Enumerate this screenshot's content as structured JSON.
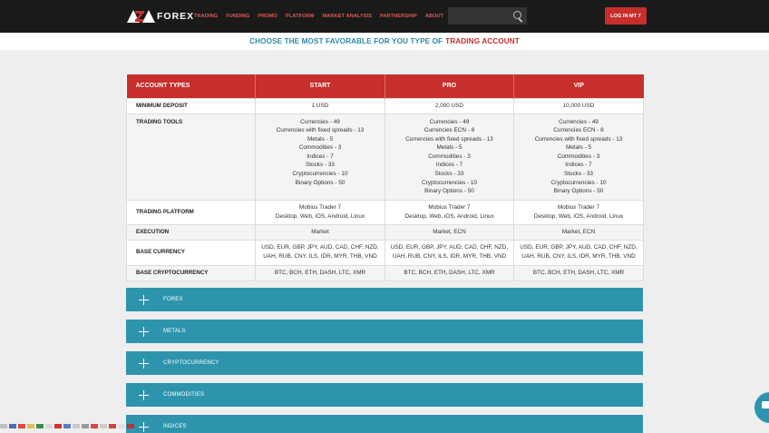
{
  "brand": {
    "logo_text": "FOREX",
    "accent": "#c62f2b",
    "teal": "#2e94ad"
  },
  "nav": {
    "items": [
      "TRADING",
      "FUNDING",
      "PROMO",
      "PLATFORM",
      "MARKET ANALYSIS",
      "PARTNERSHIP",
      "ABOUT"
    ],
    "search_placeholder": "",
    "login_label": "LOG IN MT 7"
  },
  "heading": {
    "prefix": "CHOOSE THE MOST FAVORABLE FOR YOU TYPE OF",
    "highlight": "TRADING ACCOUNT"
  },
  "table": {
    "columns": [
      "ACCOUNT TYPES",
      "START",
      "PRO",
      "VIP"
    ],
    "rows": {
      "minimum_deposit": {
        "label": "MINIMUM DEPOSIT",
        "values": [
          "1 USD",
          "2,000 USD",
          "10,000 USD"
        ]
      },
      "trading_tools": {
        "label": "TRADING TOOLS",
        "values": [
          [
            "Currencies - 49",
            "Currencies with fixed spreads - 13",
            "Metals - 5",
            "Commodities - 3",
            "Indices - 7",
            "Stocks - 33",
            "Cryptocurrencies - 10",
            "Binary Options - 50"
          ],
          [
            "Currencies - 49",
            "Currencies ECN - 8",
            "Currencies with fixed spreads - 13",
            "Metals - 5",
            "Commodities - 3",
            "Indices - 7",
            "Stocks - 33",
            "Cryptocurrencies - 10",
            "Binary Options - 50"
          ],
          [
            "Currencies - 49",
            "Currencies ECN - 8",
            "Currencies with fixed spreads - 13",
            "Metals - 5",
            "Commodities - 3",
            "Indices - 7",
            "Stocks - 33",
            "Cryptocurrencies - 10",
            "Binary Options - 50"
          ]
        ]
      },
      "trading_platform": {
        "label": "TRADING PLATFORM",
        "values": [
          [
            "Mobius Trader 7",
            "Desktop, Web, iOS, Android, Linux"
          ],
          [
            "Mobius Trader 7",
            "Desktop, Web, iOS, Android, Linux"
          ],
          [
            "Mobius Trader 7",
            "Desktop, Web, iOS, Android, Linux"
          ]
        ]
      },
      "execution": {
        "label": "EXECUTION",
        "values": [
          "Market",
          "Market, ECN",
          "Market, ECN"
        ]
      },
      "base_currency": {
        "label": "BASE CURRENCY",
        "values": [
          [
            "USD, EUR, GBP, JPY, AUD, CAD, CHF, NZD,",
            "UAH, RUB, CNY, ILS, IDR, MYR, THB, VND"
          ],
          [
            "USD, EUR, GBP, JPY, AUD, CAD, CHF, NZD,",
            "UAH, RUB, CNY, ILS, IDR, MYR, THB, VND"
          ],
          [
            "USD, EUR, GBP, JPY, AUD, CAD, CHF, NZD,",
            "UAH, RUB, CNY, ILS, IDR, MYR, THB, VND"
          ]
        ]
      },
      "base_crypto": {
        "label": "BASE CRYPTOCURRENCY",
        "values": [
          "BTC, BCH, ETH, DASH, LTC, XMR",
          "BTC, BCH, ETH, DASH, LTC, XMR",
          "BTC, BCH, ETH, DASH, LTC, XMR"
        ]
      }
    }
  },
  "accordion": {
    "items": [
      "FOREX",
      "METALS",
      "CRYPTOCURRENCY",
      "COMMODITIES",
      "INDICES"
    ]
  },
  "languages": {
    "flag_colors": [
      "#c0c0c0",
      "#4a6fb5",
      "#d94b3c",
      "#e0c050",
      "#3d8d4c",
      "#d9d9d9",
      "#cc3333",
      "#5a7fc0",
      "#c8c8c8",
      "#999999",
      "#d44",
      "#cccccc",
      "#c44",
      "#e0e0e0",
      "#bb3333"
    ]
  }
}
